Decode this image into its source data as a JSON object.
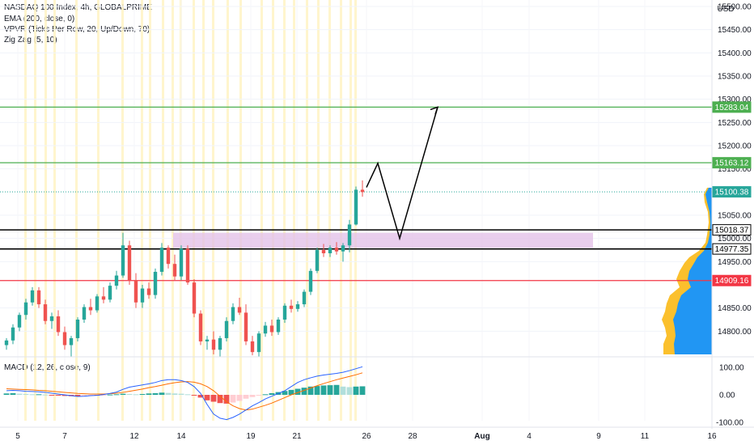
{
  "legend": {
    "title": "NASDAQ 100 Index, 4h, GLOBALPRIME",
    "ema": "EMA (200, close, 0)",
    "vpvr": "VPVR (Ticks Per Row, 20, Up/Down, 70)",
    "zigzag": "Zig Zag (5, 10)",
    "macd": "MACD (12, 26, close, 9)"
  },
  "currency": "USD",
  "colors": {
    "up": "#26a69a",
    "down": "#ef5350",
    "green_line": "#4caf50",
    "red_line": "#f23645",
    "zone": "#e1bee7",
    "vpvr_up": "#2196f3",
    "vpvr_down": "#fbc02d",
    "macd_line": "#2962ff",
    "signal_line": "#ff6d00",
    "session": "#fff3c4"
  },
  "chart_data": {
    "type": "candlestick",
    "price_axis": {
      "ticks": [
        "15500.00",
        "15450.00",
        "15400.00",
        "15350.00",
        "15300.00",
        "15250.00",
        "15200.00",
        "15150.00",
        "15050.00",
        "15000.00",
        "14950.00",
        "14850.00",
        "14800.00"
      ],
      "tick_values": [
        15500,
        15450,
        15400,
        15350,
        15300,
        15250,
        15200,
        15150,
        15050,
        15000,
        14950,
        14850,
        14800
      ]
    },
    "date_axis": {
      "labels": [
        "5",
        "7",
        "12",
        "14",
        "19",
        "21",
        "26",
        "28",
        "Aug",
        "4",
        "9",
        "11",
        "16"
      ]
    },
    "price_tags": [
      {
        "label": "15283.04",
        "value": 15283.04,
        "style": "green"
      },
      {
        "label": "15163.12",
        "value": 15163.12,
        "style": "green"
      },
      {
        "label": "15100.38",
        "value": 15100.38,
        "style": "current"
      },
      {
        "label": "15018.37",
        "value": 15018.37,
        "style": "black"
      },
      {
        "label": "14977.35",
        "value": 14977.35,
        "style": "black"
      },
      {
        "label": "14909.16",
        "value": 14909.16,
        "style": "red"
      }
    ],
    "levels": [
      {
        "value": 15283.04,
        "style": "green"
      },
      {
        "value": 15163.12,
        "style": "green"
      },
      {
        "value": 15018.37,
        "style": "black"
      },
      {
        "value": 14977.35,
        "style": "black"
      },
      {
        "value": 14909.16,
        "style": "red"
      }
    ],
    "zone": {
      "from": 14980,
      "to": 15012
    },
    "projection": [
      {
        "date": "Jul 25",
        "price": 15110
      },
      {
        "date": "Jul 26",
        "price": 15162
      },
      {
        "date": "Jul 27",
        "price": 15000
      },
      {
        "date": "Jul 29",
        "price": 15283
      }
    ],
    "candles": [
      {
        "date": "Jul 6",
        "o": 14770,
        "h": 14785,
        "l": 14760,
        "c": 14780
      },
      {
        "date": "Jul 6",
        "o": 14780,
        "h": 14815,
        "l": 14772,
        "c": 14808
      },
      {
        "date": "Jul 6",
        "o": 14808,
        "h": 14840,
        "l": 14800,
        "c": 14835
      },
      {
        "date": "Jul 6",
        "o": 14835,
        "h": 14870,
        "l": 14825,
        "c": 14862
      },
      {
        "date": "Jul 6",
        "o": 14862,
        "h": 14895,
        "l": 14855,
        "c": 14888
      },
      {
        "date": "Jul 7",
        "o": 14888,
        "h": 14895,
        "l": 14850,
        "c": 14858
      },
      {
        "date": "Jul 7",
        "o": 14858,
        "h": 14868,
        "l": 14815,
        "c": 14822
      },
      {
        "date": "Jul 7",
        "o": 14822,
        "h": 14840,
        "l": 14805,
        "c": 14832
      },
      {
        "date": "Jul 7",
        "o": 14832,
        "h": 14845,
        "l": 14790,
        "c": 14798
      },
      {
        "date": "Jul 8",
        "o": 14798,
        "h": 14810,
        "l": 14760,
        "c": 14770
      },
      {
        "date": "Jul 8",
        "o": 14770,
        "h": 14790,
        "l": 14745,
        "c": 14785
      },
      {
        "date": "Jul 9",
        "o": 14785,
        "h": 14830,
        "l": 14778,
        "c": 14825
      },
      {
        "date": "Jul 9",
        "o": 14825,
        "h": 14858,
        "l": 14818,
        "c": 14852
      },
      {
        "date": "Jul 12",
        "o": 14852,
        "h": 14870,
        "l": 14835,
        "c": 14845
      },
      {
        "date": "Jul 12",
        "o": 14845,
        "h": 14880,
        "l": 14840,
        "c": 14875
      },
      {
        "date": "Jul 12",
        "o": 14875,
        "h": 14895,
        "l": 14860,
        "c": 14868
      },
      {
        "date": "Jul 13",
        "o": 14868,
        "h": 14905,
        "l": 14862,
        "c": 14898
      },
      {
        "date": "Jul 13",
        "o": 14898,
        "h": 14930,
        "l": 14890,
        "c": 14920
      },
      {
        "date": "Jul 13",
        "o": 14920,
        "h": 15012,
        "l": 14915,
        "c": 14985
      },
      {
        "date": "Jul 13",
        "o": 14985,
        "h": 14995,
        "l": 14900,
        "c": 14910
      },
      {
        "date": "Jul 14",
        "o": 14910,
        "h": 14925,
        "l": 14850,
        "c": 14862
      },
      {
        "date": "Jul 14",
        "o": 14862,
        "h": 14900,
        "l": 14850,
        "c": 14892
      },
      {
        "date": "Jul 14",
        "o": 14892,
        "h": 14905,
        "l": 14870,
        "c": 14878
      },
      {
        "date": "Jul 14",
        "o": 14878,
        "h": 14935,
        "l": 14870,
        "c": 14928
      },
      {
        "date": "Jul 15",
        "o": 14928,
        "h": 14990,
        "l": 14920,
        "c": 14980
      },
      {
        "date": "Jul 15",
        "o": 14980,
        "h": 14985,
        "l": 14935,
        "c": 14945
      },
      {
        "date": "Jul 15",
        "o": 14945,
        "h": 14965,
        "l": 14910,
        "c": 14918
      },
      {
        "date": "Jul 15",
        "o": 14918,
        "h": 14985,
        "l": 14910,
        "c": 14978
      },
      {
        "date": "Jul 16",
        "o": 14978,
        "h": 14985,
        "l": 14900,
        "c": 14905
      },
      {
        "date": "Jul 16",
        "o": 14905,
        "h": 14912,
        "l": 14830,
        "c": 14838
      },
      {
        "date": "Jul 16",
        "o": 14838,
        "h": 14845,
        "l": 14770,
        "c": 14778
      },
      {
        "date": "Jul 16",
        "o": 14778,
        "h": 14790,
        "l": 14760,
        "c": 14782
      },
      {
        "date": "Jul 19",
        "o": 14782,
        "h": 14800,
        "l": 14750,
        "c": 14760
      },
      {
        "date": "Jul 19",
        "o": 14760,
        "h": 14790,
        "l": 14745,
        "c": 14785
      },
      {
        "date": "Jul 19",
        "o": 14785,
        "h": 14830,
        "l": 14778,
        "c": 14822
      },
      {
        "date": "Jul 19",
        "o": 14822,
        "h": 14860,
        "l": 14815,
        "c": 14852
      },
      {
        "date": "Jul 20",
        "o": 14852,
        "h": 14872,
        "l": 14835,
        "c": 14840
      },
      {
        "date": "Jul 20",
        "o": 14840,
        "h": 14858,
        "l": 14770,
        "c": 14778
      },
      {
        "date": "Jul 20",
        "o": 14778,
        "h": 14790,
        "l": 14748,
        "c": 14755
      },
      {
        "date": "Jul 20",
        "o": 14755,
        "h": 14800,
        "l": 14745,
        "c": 14795
      },
      {
        "date": "Jul 21",
        "o": 14795,
        "h": 14820,
        "l": 14788,
        "c": 14812
      },
      {
        "date": "Jul 21",
        "o": 14812,
        "h": 14825,
        "l": 14790,
        "c": 14798
      },
      {
        "date": "Jul 21",
        "o": 14798,
        "h": 14830,
        "l": 14792,
        "c": 14825
      },
      {
        "date": "Jul 22",
        "o": 14825,
        "h": 14860,
        "l": 14818,
        "c": 14855
      },
      {
        "date": "Jul 22",
        "o": 14855,
        "h": 14868,
        "l": 14840,
        "c": 14848
      },
      {
        "date": "Jul 22",
        "o": 14848,
        "h": 14865,
        "l": 14842,
        "c": 14858
      },
      {
        "date": "Jul 22",
        "o": 14858,
        "h": 14890,
        "l": 14852,
        "c": 14885
      },
      {
        "date": "Jul 23",
        "o": 14885,
        "h": 14935,
        "l": 14878,
        "c": 14930
      },
      {
        "date": "Jul 23",
        "o": 14930,
        "h": 14980,
        "l": 14925,
        "c": 14975
      },
      {
        "date": "Jul 23",
        "o": 14975,
        "h": 14988,
        "l": 14960,
        "c": 14968
      },
      {
        "date": "Jul 23",
        "o": 14968,
        "h": 14985,
        "l": 14960,
        "c": 14980
      },
      {
        "date": "Jul 23",
        "o": 14980,
        "h": 14992,
        "l": 14965,
        "c": 14972
      },
      {
        "date": "Jul 23",
        "o": 14972,
        "h": 14990,
        "l": 14950,
        "c": 14985
      },
      {
        "date": "Jul 25",
        "o": 14985,
        "h": 15040,
        "l": 14970,
        "c": 15030
      },
      {
        "date": "Jul 25",
        "o": 15030,
        "h": 15112,
        "l": 15028,
        "c": 15105
      },
      {
        "date": "Jul 25",
        "o": 15105,
        "h": 15125,
        "l": 15090,
        "c": 15100
      }
    ],
    "macd": {
      "ticks": [
        "100.00",
        "0.00",
        "-100.00"
      ],
      "tick_values": [
        100,
        0,
        -100
      ],
      "histogram": [
        5,
        6,
        4,
        3,
        2,
        2,
        1,
        -1,
        -3,
        -4,
        -5,
        -6,
        -4,
        -2,
        -3,
        -1,
        1,
        2,
        4,
        3,
        2,
        3,
        5,
        6,
        8,
        7,
        5,
        4,
        2,
        -2,
        -10,
        -20,
        -25,
        -30,
        -32,
        -28,
        -22,
        -14,
        -8,
        -3,
        2,
        6,
        10,
        14,
        18,
        22,
        26,
        30,
        32,
        34,
        35,
        36,
        30,
        28,
        30,
        31
      ],
      "macd_line": [
        15,
        16,
        15,
        13,
        12,
        11,
        9,
        6,
        3,
        0,
        -3,
        -6,
        -5,
        -3,
        -2,
        1,
        5,
        10,
        20,
        28,
        32,
        36,
        40,
        45,
        52,
        55,
        55,
        52,
        45,
        30,
        5,
        -35,
        -70,
        -85,
        -90,
        -82,
        -70,
        -55,
        -40,
        -28,
        -15,
        -5,
        5,
        15,
        30,
        45,
        55,
        62,
        68,
        72,
        75,
        78,
        82,
        88,
        95,
        102
      ],
      "signal_line": [
        22,
        21,
        20,
        19,
        18,
        16,
        15,
        13,
        11,
        9,
        7,
        5,
        4,
        3,
        3,
        3,
        4,
        6,
        9,
        13,
        17,
        21,
        26,
        30,
        35,
        40,
        44,
        47,
        48,
        46,
        40,
        30,
        15,
        -5,
        -25,
        -40,
        -50,
        -55,
        -52,
        -45,
        -38,
        -30,
        -20,
        -10,
        0,
        8,
        16,
        25,
        33,
        41,
        48,
        55,
        61,
        67,
        73,
        80
      ]
    }
  }
}
